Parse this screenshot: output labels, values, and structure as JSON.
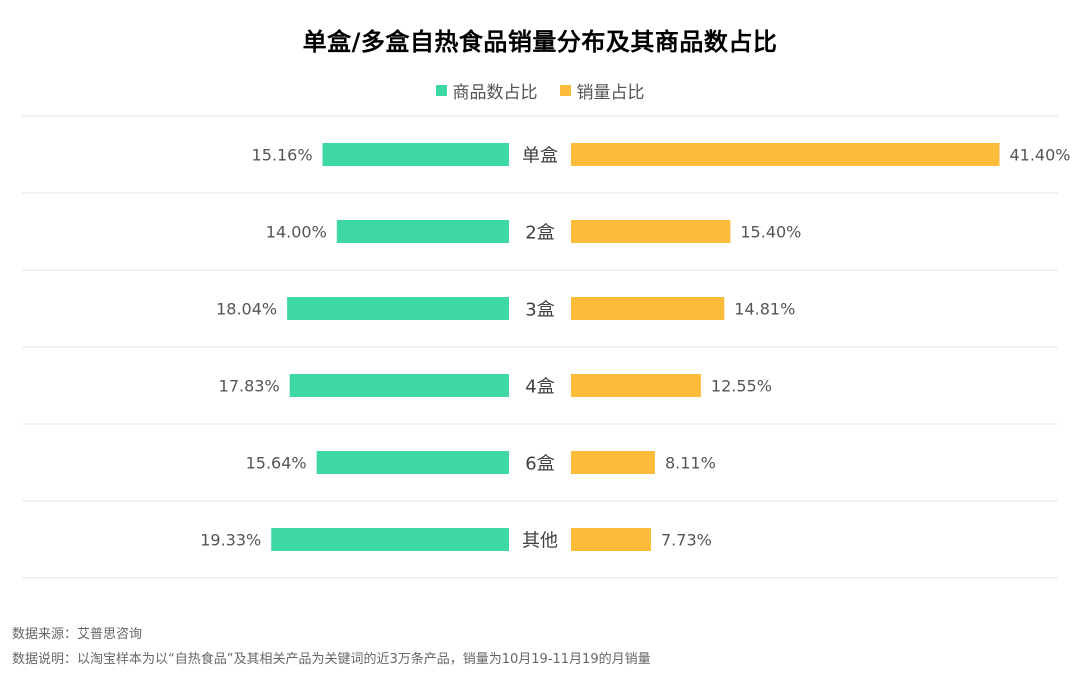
{
  "chart_data": {
    "type": "bar",
    "title": "单盒/多盒自热食品销量分布及其商品数占比",
    "categories": [
      "单盒",
      "2盒",
      "3盒",
      "4盒",
      "6盒",
      "其他"
    ],
    "series": [
      {
        "name": "商品数占比",
        "values": [
          15.16,
          14.0,
          18.04,
          17.83,
          15.64,
          19.33
        ],
        "labels": [
          "15.16%",
          "14.00%",
          "18.04%",
          "17.83%",
          "15.64%",
          "19.33%"
        ],
        "color": "#3ED8A4",
        "direction": "left"
      },
      {
        "name": "销量占比",
        "values": [
          41.4,
          15.4,
          14.81,
          12.55,
          8.11,
          7.73
        ],
        "labels": [
          "41.40%",
          "15.40%",
          "14.81%",
          "12.55%",
          "8.11%",
          "7.73%"
        ],
        "color": "#FDBB3A",
        "direction": "right"
      }
    ],
    "unit": "%",
    "legend_position": "top-center",
    "grid": true
  },
  "footer": {
    "source": "数据来源：艾普思咨询",
    "description": "数据说明：以淘宝样本为以“自热食品”及其相关产品为关键词的近3万条产品，销量为10月19-11月19的月销量"
  }
}
